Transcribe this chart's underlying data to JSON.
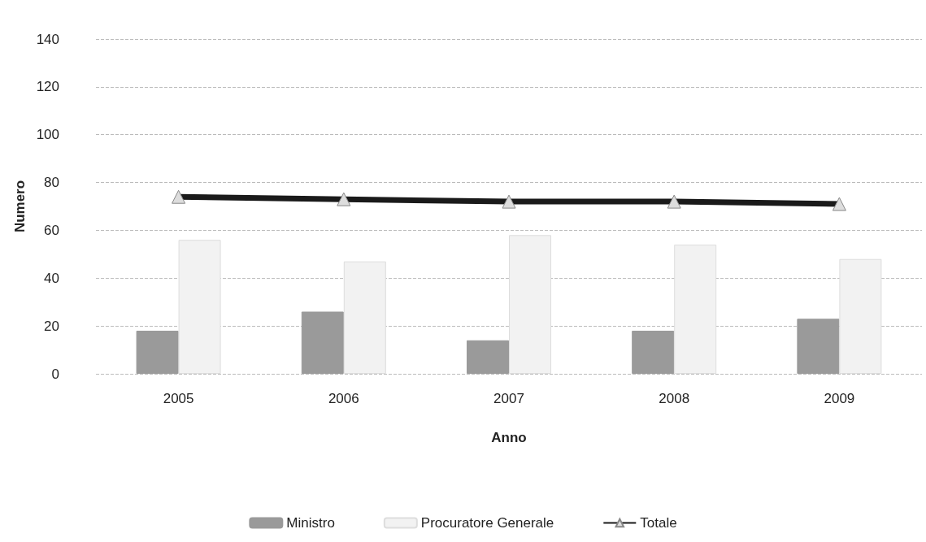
{
  "chart_data": {
    "type": "bar",
    "xlabel": "Anno",
    "ylabel": "Numero",
    "categories": [
      "2005",
      "2006",
      "2007",
      "2008",
      "2009"
    ],
    "series": [
      {
        "name": "Ministro",
        "color": "#9a9a9a",
        "values": [
          18,
          26,
          14,
          18,
          23
        ]
      },
      {
        "name": "Procuratore Generale",
        "color": "#f2f2f2",
        "values": [
          56,
          47,
          58,
          54,
          48
        ]
      },
      {
        "name": "Totale",
        "type": "line",
        "color": "#1a1a1a",
        "values": [
          74,
          73,
          72,
          72,
          71
        ],
        "marker": "triangle"
      }
    ],
    "ylim": [
      0,
      140
    ],
    "yticks": [
      0,
      20,
      40,
      60,
      80,
      100,
      120,
      140
    ],
    "grid": "y",
    "legend": "bottom"
  }
}
